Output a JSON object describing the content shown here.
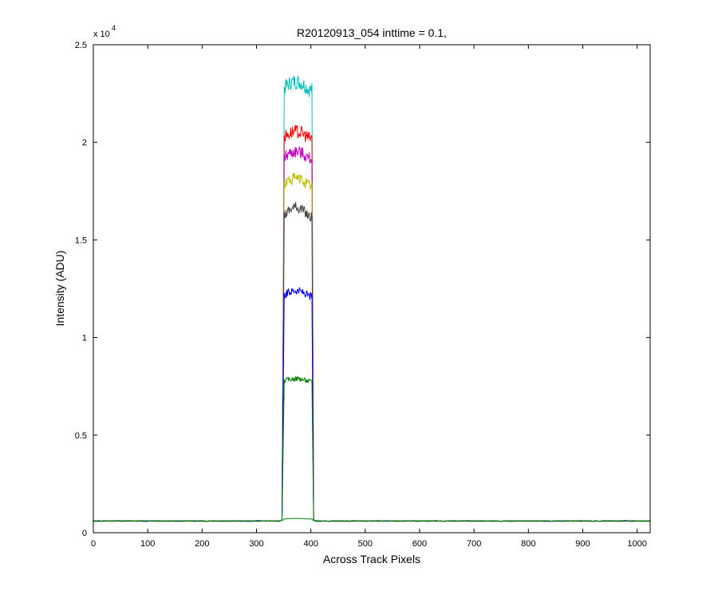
{
  "chart_data": {
    "type": "line",
    "title": "R20120913_054 inttime = 0.1,",
    "xlabel": "Across Track Pixels",
    "ylabel": "Intensity (ADU)",
    "y_exponent_base": "x 10",
    "y_exponent_power": "4",
    "xlim": [
      0,
      1024
    ],
    "ylim": [
      0,
      25000
    ],
    "x_ticks": [
      0,
      100,
      200,
      300,
      400,
      500,
      600,
      700,
      800,
      900,
      1000
    ],
    "x_tick_labels": [
      "0",
      "100",
      "200",
      "300",
      "400",
      "500",
      "600",
      "700",
      "800",
      "900",
      "1000"
    ],
    "y_ticks": [
      0,
      5000,
      10000,
      15000,
      20000,
      25000
    ],
    "y_tick_labels": [
      "0",
      "0.5",
      "1",
      "1.5",
      "2",
      "2.5"
    ],
    "grid": false,
    "baseline": 600,
    "plateau_start": 348,
    "plateau_end": 404,
    "series": [
      {
        "color": "#00bfbf",
        "plateau_level": 22700,
        "peak": 23400
      },
      {
        "color": "#ff0000",
        "plateau_level": 20200,
        "peak": 20800
      },
      {
        "color": "#bf00bf",
        "plateau_level": 19200,
        "peak": 19800
      },
      {
        "color": "#bfbf00",
        "plateau_level": 17800,
        "peak": 18400
      },
      {
        "color": "#404040",
        "plateau_level": 16200,
        "peak": 17000
      },
      {
        "color": "#0000ff",
        "plateau_level": 12100,
        "peak": 12600
      },
      {
        "color": "#008000",
        "plateau_level": 7750,
        "peak": 8000
      },
      {
        "color": "#008000",
        "plateau_level": 700,
        "peak": 750
      }
    ]
  }
}
